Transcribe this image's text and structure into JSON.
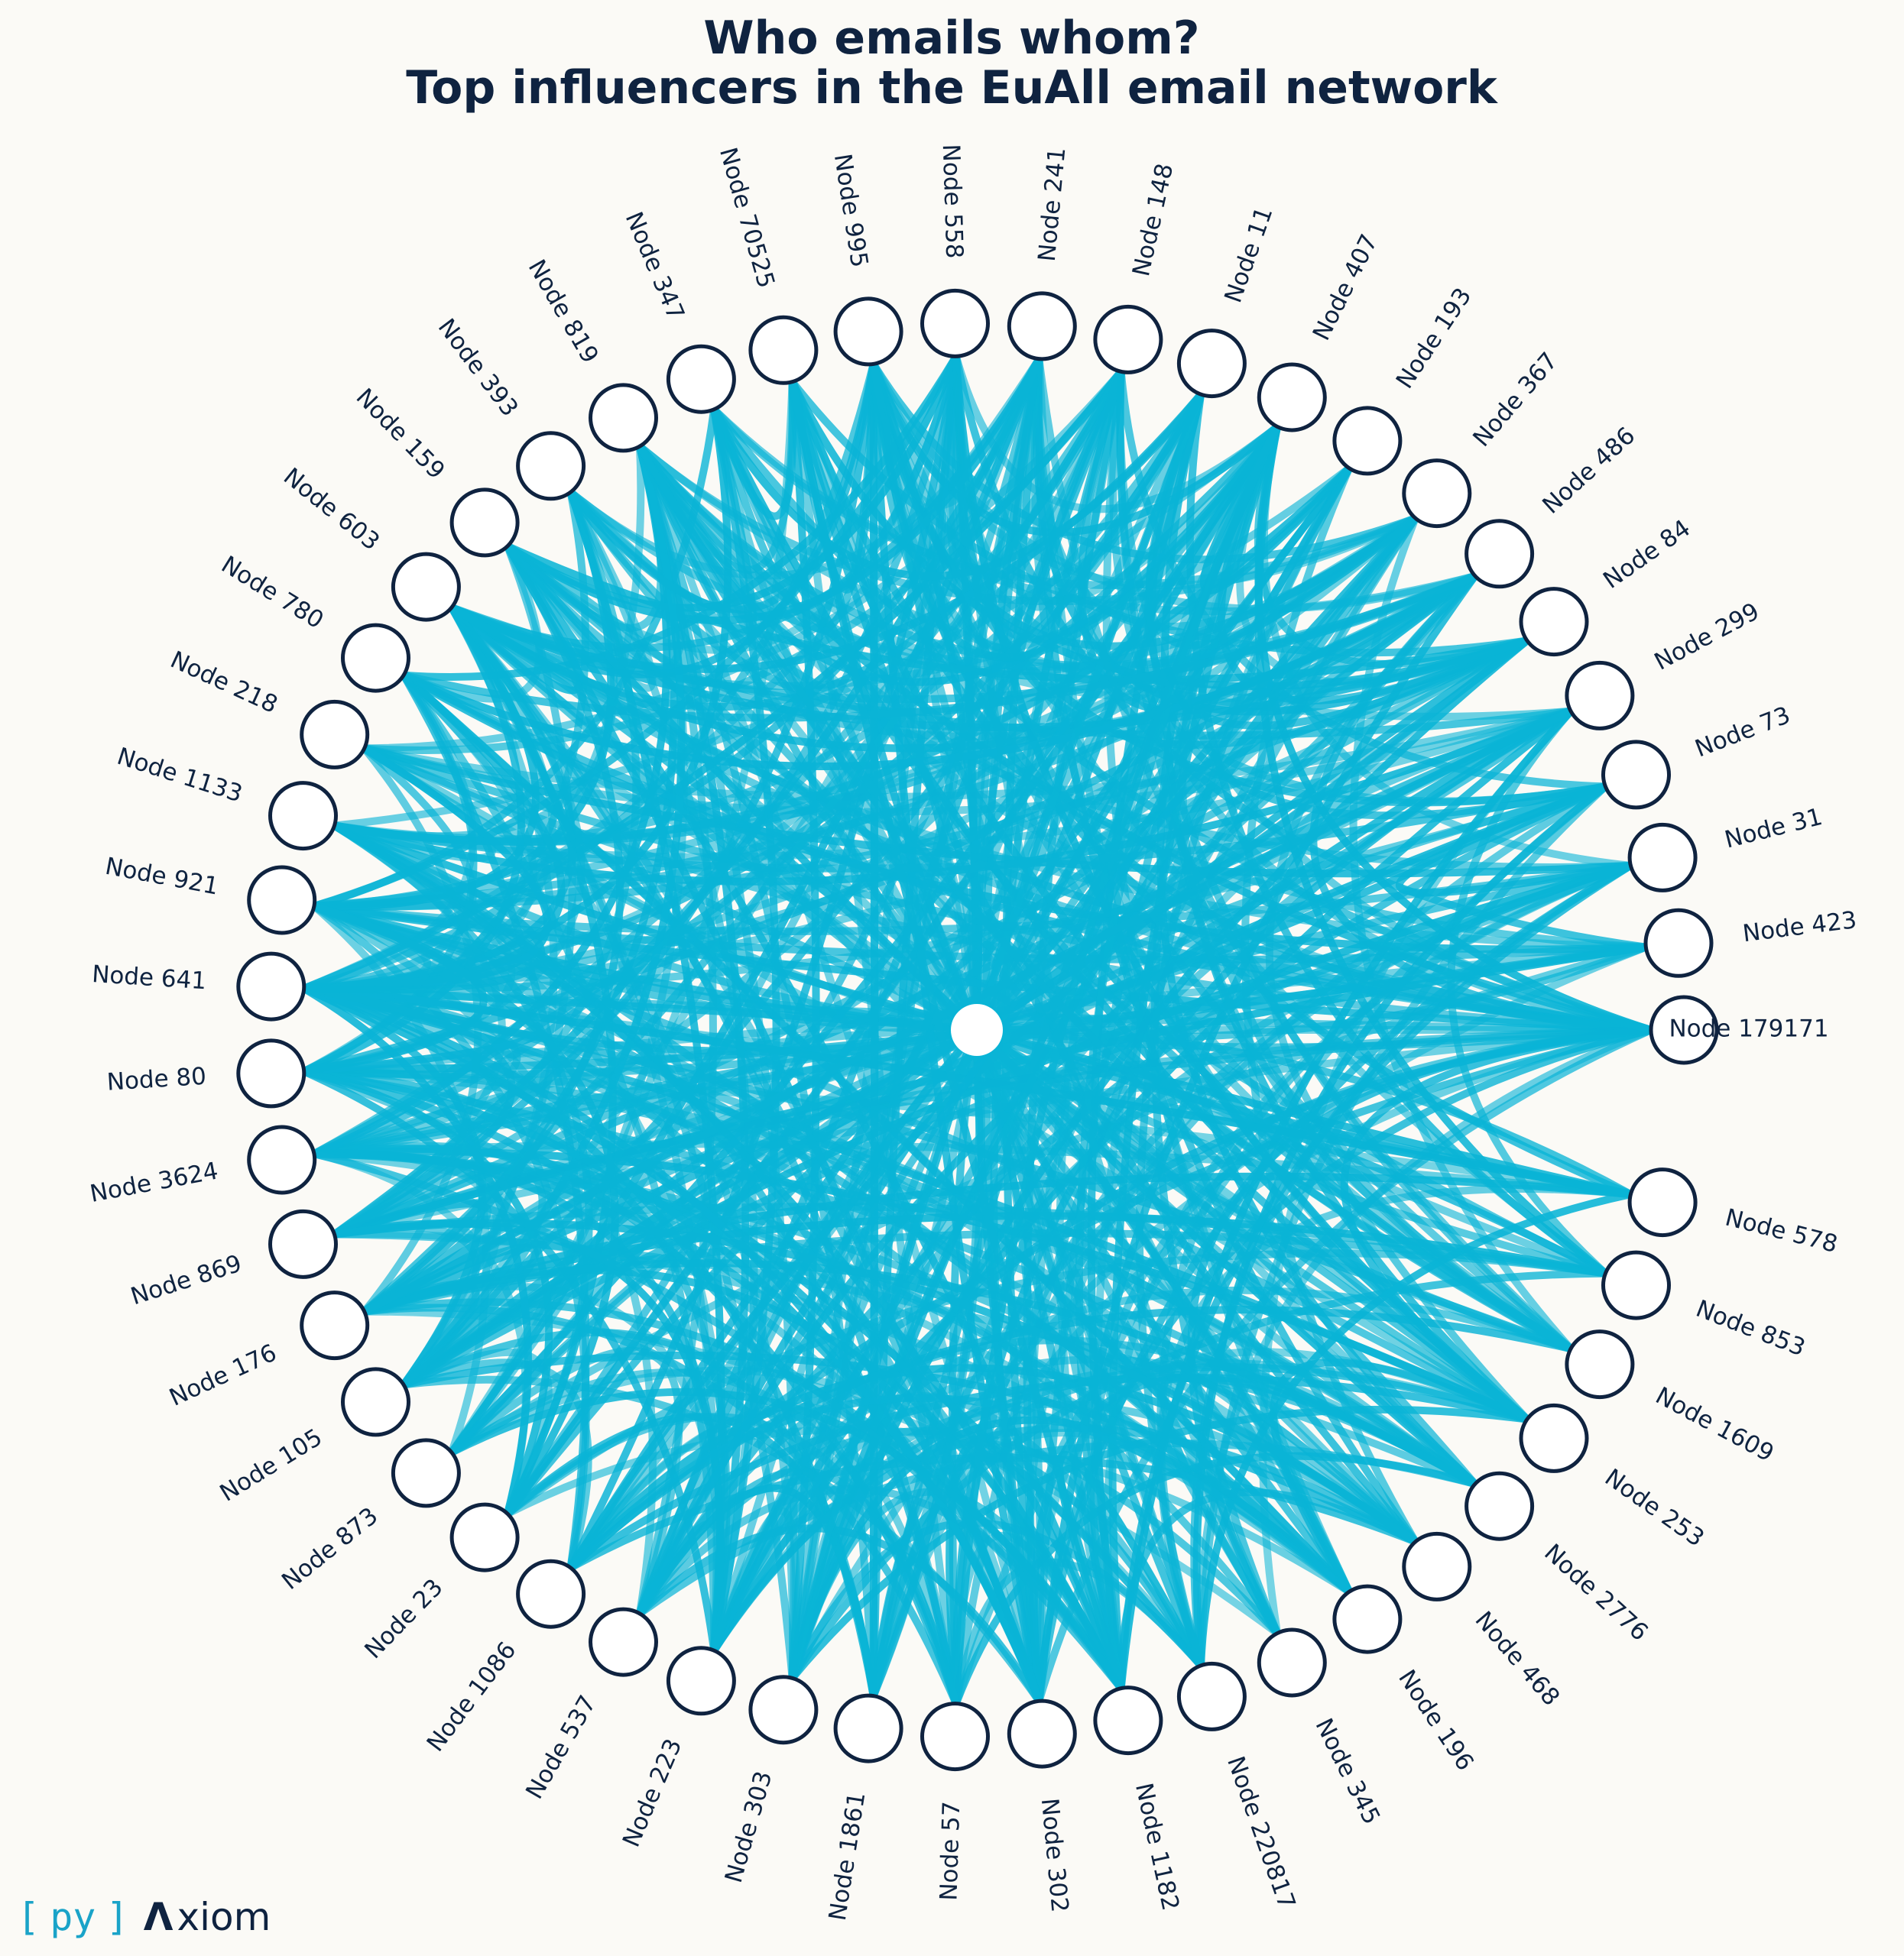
{
  "title": {
    "line1": "Who emails whom?",
    "line2": "Top influencers in the EuAll email network"
  },
  "colors": {
    "background": "#fbfaf6",
    "edge": "#0ab4d6",
    "node_fill": "#ffffff",
    "node_stroke": "#0f2340",
    "text": "#0f2340"
  },
  "nodes": [
    "Node 179171",
    "Node 423",
    "Node 31",
    "Node 73",
    "Node 299",
    "Node 84",
    "Node 486",
    "Node 367",
    "Node 193",
    "Node 407",
    "Node 11",
    "Node 148",
    "Node 241",
    "Node 558",
    "Node 995",
    "Node 70525",
    "Node 347",
    "Node 819",
    "Node 393",
    "Node 159",
    "Node 603",
    "Node 780",
    "Node 218",
    "Node 1133",
    "Node 921",
    "Node 641",
    "Node 80",
    "Node 3624",
    "Node 869",
    "Node 176",
    "Node 105",
    "Node 873",
    "Node 23",
    "Node 1086",
    "Node 537",
    "Node 223",
    "Node 303",
    "Node 1861",
    "Node 57",
    "Node 302",
    "Node 1182",
    "Node 220817",
    "Node 345",
    "Node 196",
    "Node 468",
    "Node 2776",
    "Node 253",
    "Node 1609",
    "Node 853",
    "Node 578"
  ],
  "hub": {
    "label": ""
  },
  "logo": {
    "open": "[",
    "py": "py",
    "close": "]",
    "mark": "Λ",
    "text": "xiom"
  }
}
